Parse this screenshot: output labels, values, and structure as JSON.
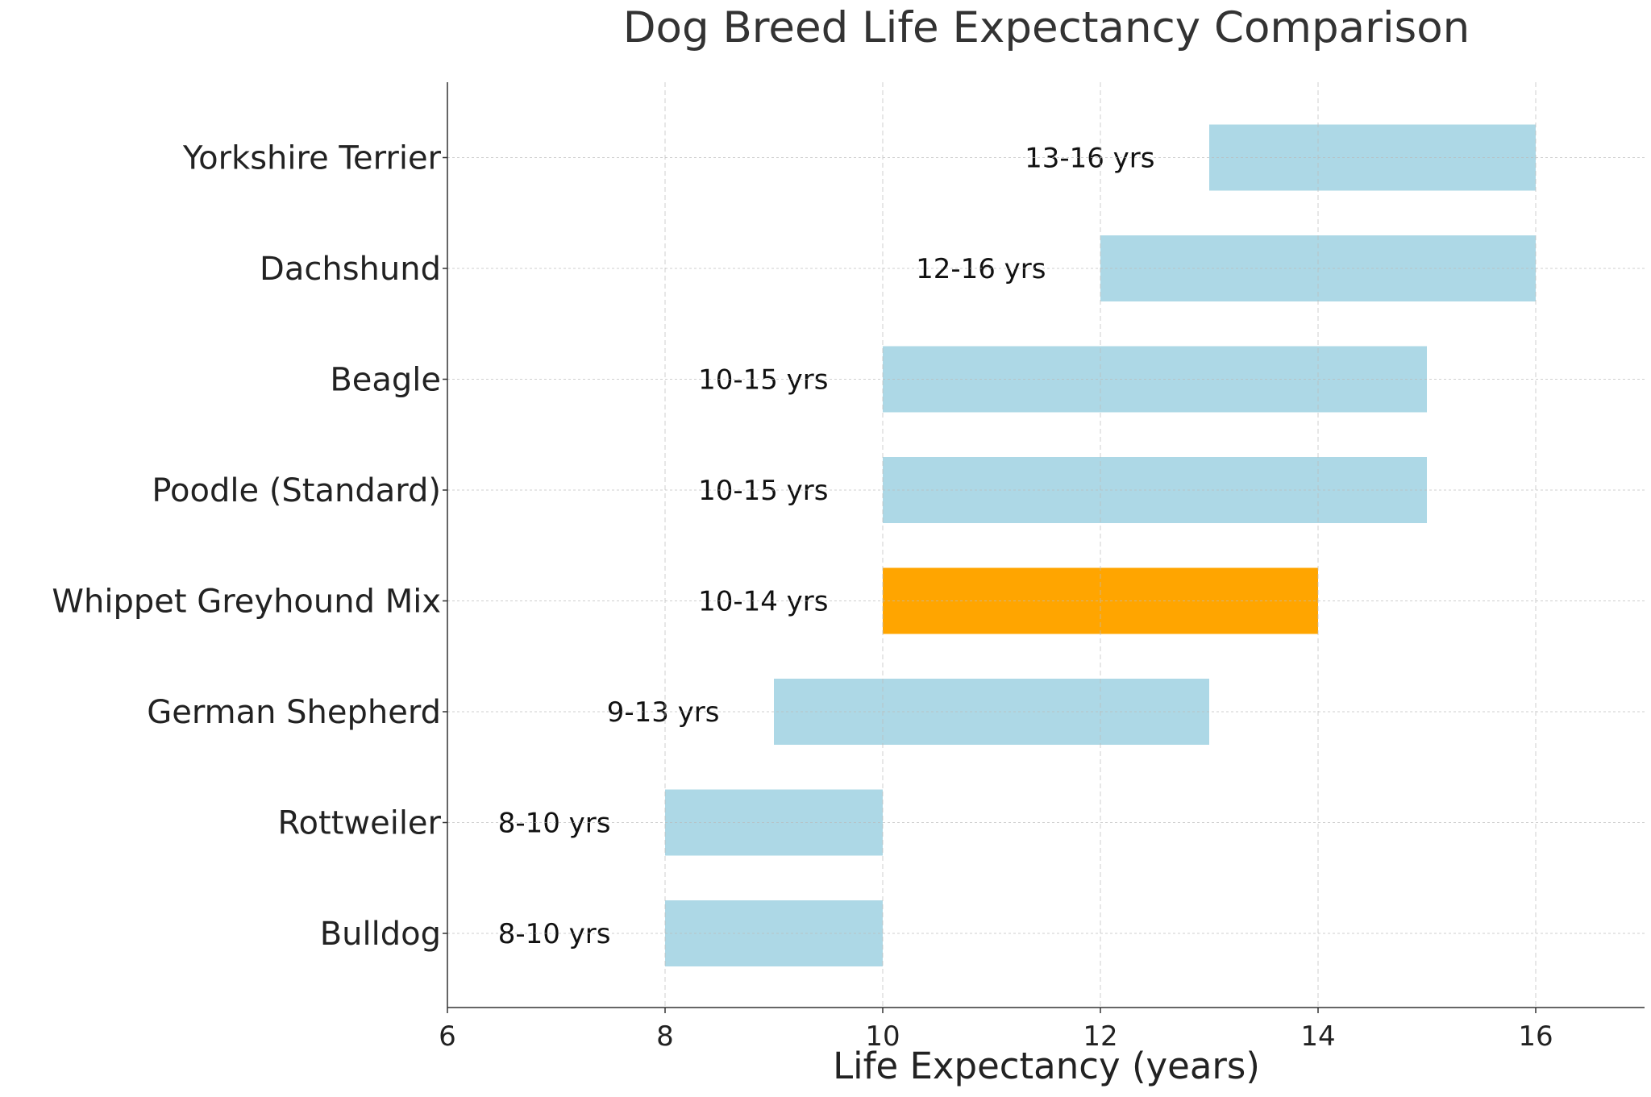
{
  "chart_data": {
    "type": "bar",
    "orientation": "horizontal-range",
    "title": "Dog Breed Life Expectancy Comparison",
    "xlabel": "Life Expectancy (years)",
    "ylabel": "",
    "xlim": [
      6,
      17
    ],
    "xticks": [
      "6",
      "8",
      "10",
      "12",
      "14",
      "16"
    ],
    "grid": true,
    "categories": [
      "Bulldog",
      "Rottweiler",
      "German Shepherd",
      "Whippet Greyhound Mix",
      "Poodle (Standard)",
      "Beagle",
      "Dachshund",
      "Yorkshire Terrier"
    ],
    "ranges": [
      [
        8,
        10
      ],
      [
        8,
        10
      ],
      [
        9,
        13
      ],
      [
        10,
        14
      ],
      [
        10,
        15
      ],
      [
        10,
        15
      ],
      [
        12,
        16
      ],
      [
        13,
        16
      ]
    ],
    "labels": [
      "8-10 yrs",
      "8-10 yrs",
      "9-13 yrs",
      "10-14 yrs",
      "10-15 yrs",
      "10-15 yrs",
      "12-16 yrs",
      "13-16 yrs"
    ],
    "highlight": "Whippet Greyhound Mix",
    "colors": {
      "default": "#add8e6",
      "highlight": "#ffa500"
    }
  }
}
